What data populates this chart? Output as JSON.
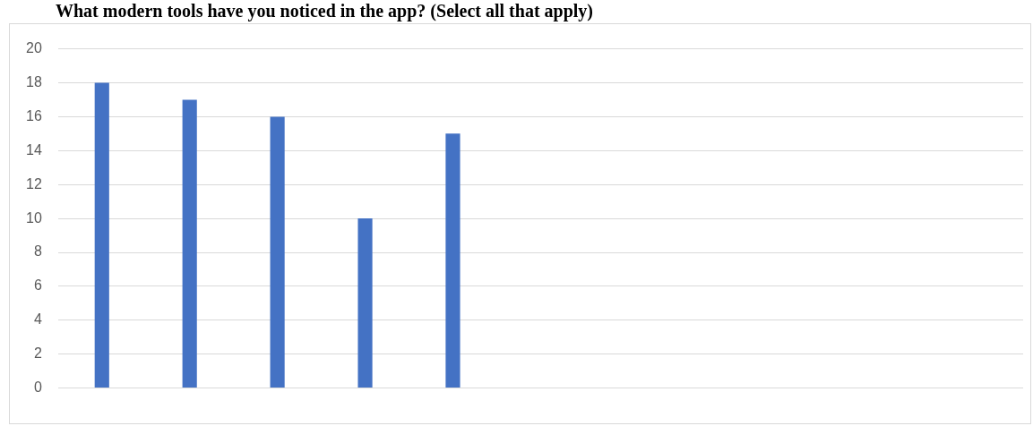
{
  "chart_data": {
    "type": "bar",
    "title": "What modern tools have you noticed in the app? (Select all that apply)",
    "categories": [
      null,
      null,
      null,
      null,
      null,
      null,
      null,
      null,
      null,
      null,
      null
    ],
    "values": [
      18,
      17,
      16,
      10,
      15,
      null,
      null,
      null,
      null,
      null,
      null
    ],
    "color": "#4472c4",
    "ylim": [
      0,
      20
    ],
    "yticks": [
      0,
      2,
      4,
      6,
      8,
      10,
      12,
      14,
      16,
      18,
      20
    ],
    "grid": "y"
  }
}
